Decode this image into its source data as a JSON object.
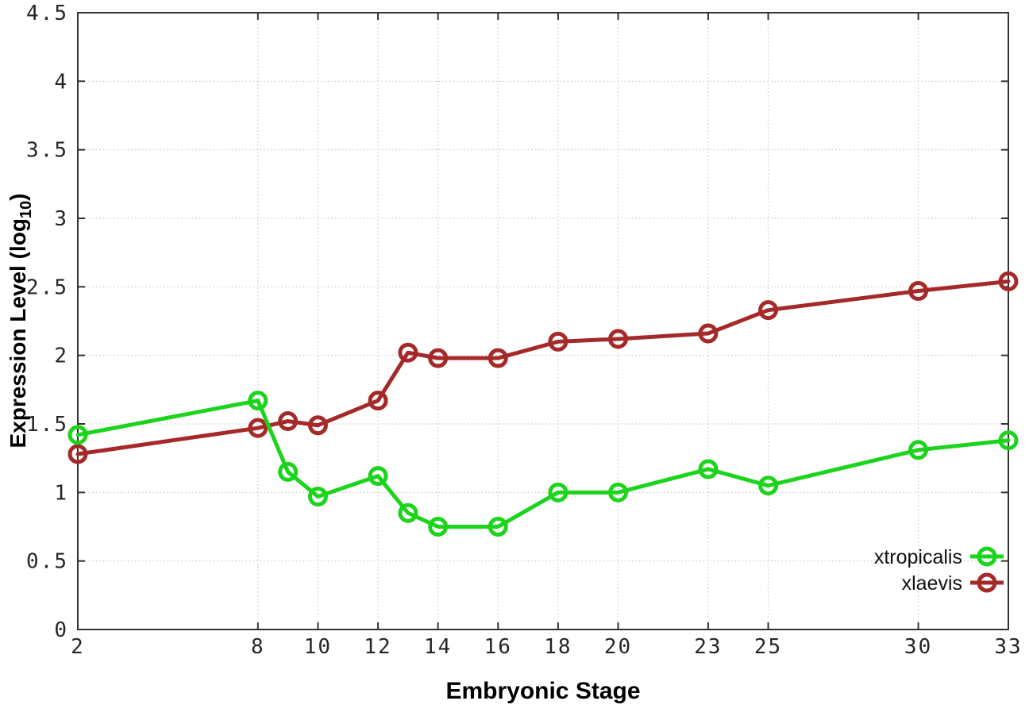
{
  "figure": {
    "background": "#ffffff",
    "border_color": "#333333",
    "grid_color": "#c0c0c0",
    "tick_color": "#333333"
  },
  "chart_data": {
    "type": "line",
    "title": "",
    "xlabel": "Embryonic Stage",
    "ylabel": "Expression Level (log10)",
    "ylabel_parts": {
      "pre": "Expression Level (log",
      "sub": "10",
      "post": ")"
    },
    "x": [
      2,
      8,
      9,
      10,
      12,
      13,
      14,
      16,
      18,
      20,
      23,
      25,
      30,
      33
    ],
    "x_ticks": [
      2,
      8,
      10,
      12,
      14,
      16,
      18,
      20,
      23,
      25,
      30,
      33
    ],
    "x_tick_labels": [
      "2",
      "8",
      "10",
      "12",
      "14",
      "16",
      "18",
      "20",
      "23",
      "25",
      "30",
      "33"
    ],
    "y_ticks": [
      0,
      0.5,
      1,
      1.5,
      2,
      2.5,
      3,
      3.5,
      4,
      4.5
    ],
    "y_tick_labels": [
      "0",
      "0.5",
      "1",
      "1.5",
      "2",
      "2.5",
      "3",
      "3.5",
      "4",
      "4.5"
    ],
    "xlim": [
      2,
      33
    ],
    "ylim": [
      0,
      4.5
    ],
    "grid": true,
    "marker": "open-circle",
    "legend_position": "bottom-right",
    "series": [
      {
        "name": "xtropicalis",
        "color": "#1bd41b",
        "values": [
          1.42,
          1.67,
          1.15,
          0.97,
          1.12,
          0.85,
          0.75,
          0.75,
          1.0,
          1.0,
          1.17,
          1.05,
          1.31,
          1.38
        ]
      },
      {
        "name": "xlaevis",
        "color": "#a62929",
        "values": [
          1.28,
          1.47,
          1.52,
          1.49,
          1.67,
          2.02,
          1.98,
          1.98,
          2.1,
          2.12,
          2.16,
          2.33,
          2.47,
          2.54
        ]
      }
    ]
  }
}
